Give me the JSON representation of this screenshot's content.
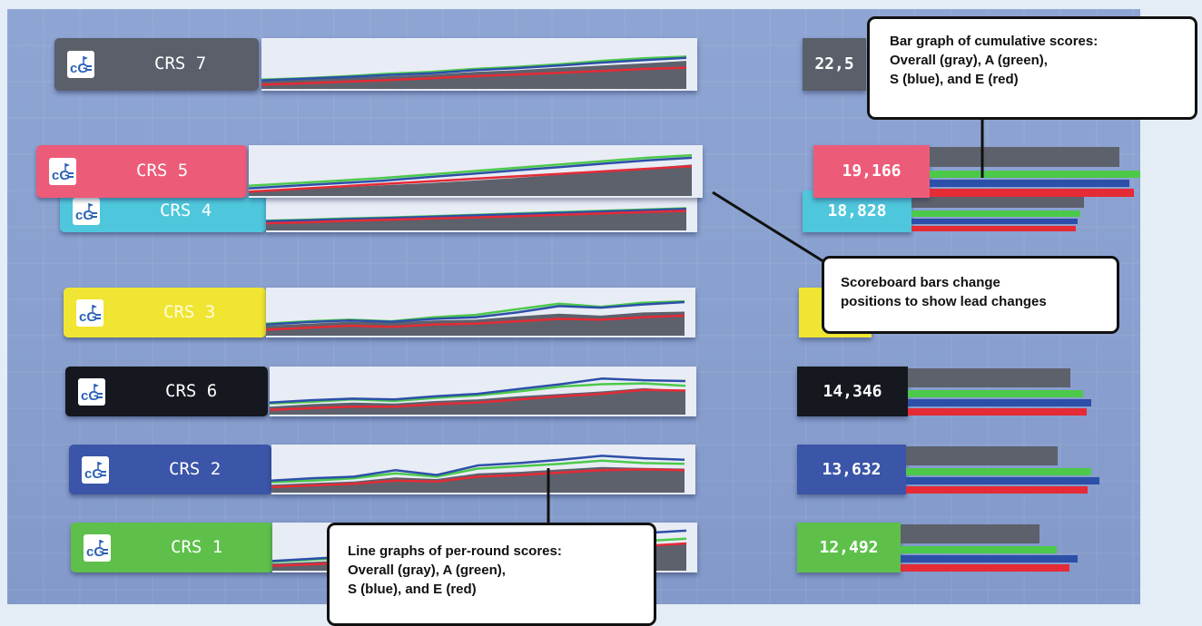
{
  "scoreboard": {
    "rows": [
      {
        "id": "crs7",
        "label": "CRS 7",
        "score": "22,5",
        "color": "#5a5f6a",
        "lines": {
          "gray": [
            0.18,
            0.22,
            0.26,
            0.3,
            0.34,
            0.4,
            0.44,
            0.5,
            0.55,
            0.6,
            0.66
          ],
          "green": [
            0.22,
            0.25,
            0.3,
            0.36,
            0.4,
            0.47,
            0.52,
            0.58,
            0.66,
            0.72,
            0.76
          ],
          "blue": [
            0.2,
            0.24,
            0.28,
            0.33,
            0.37,
            0.44,
            0.49,
            0.55,
            0.62,
            0.68,
            0.73
          ],
          "red": [
            0.1,
            0.13,
            0.17,
            0.21,
            0.25,
            0.3,
            0.34,
            0.38,
            0.42,
            0.47,
            0.5
          ]
        }
      },
      {
        "id": "crs4",
        "label": "CRS 4",
        "score": "18,828",
        "color": "#4ec6dc",
        "lines": {
          "gray": [
            0.25,
            0.28,
            0.32,
            0.34,
            0.38,
            0.42,
            0.45,
            0.5,
            0.54,
            0.58,
            0.62
          ],
          "green": [
            0.3,
            0.33,
            0.37,
            0.4,
            0.44,
            0.48,
            0.52,
            0.56,
            0.6,
            0.64,
            0.68
          ],
          "blue": [
            0.28,
            0.31,
            0.35,
            0.38,
            0.42,
            0.46,
            0.5,
            0.54,
            0.58,
            0.62,
            0.66
          ],
          "red": [
            0.22,
            0.25,
            0.3,
            0.33,
            0.37,
            0.4,
            0.44,
            0.48,
            0.52,
            0.56,
            0.6
          ]
        },
        "bars": {
          "gray": 0.82,
          "green": 0.8,
          "blue": 0.79,
          "red": 0.78
        }
      },
      {
        "id": "crs5",
        "label": "CRS 5",
        "score": "19,166",
        "color": "#ec5c79",
        "lines": {
          "gray": [
            0.12,
            0.16,
            0.2,
            0.25,
            0.3,
            0.36,
            0.42,
            0.5,
            0.58,
            0.66,
            0.74
          ],
          "green": [
            0.24,
            0.3,
            0.36,
            0.42,
            0.5,
            0.58,
            0.66,
            0.74,
            0.82,
            0.9,
            0.96
          ],
          "blue": [
            0.18,
            0.24,
            0.3,
            0.36,
            0.44,
            0.52,
            0.6,
            0.68,
            0.76,
            0.84,
            0.9
          ],
          "red": [
            0.1,
            0.16,
            0.22,
            0.28,
            0.34,
            0.4,
            0.46,
            0.52,
            0.58,
            0.64,
            0.7
          ]
        },
        "bars": {
          "gray": 0.9,
          "green": 1.0,
          "blue": 0.95,
          "red": 0.97
        }
      },
      {
        "id": "crs3",
        "label": "CRS 3",
        "score": "",
        "color": "#f0e532",
        "lines": {
          "gray": [
            0.25,
            0.3,
            0.35,
            0.33,
            0.38,
            0.4,
            0.48,
            0.55,
            0.5,
            0.58,
            0.6
          ],
          "green": [
            0.3,
            0.36,
            0.4,
            0.36,
            0.46,
            0.52,
            0.66,
            0.8,
            0.72,
            0.82,
            0.86
          ],
          "blue": [
            0.28,
            0.34,
            0.38,
            0.35,
            0.42,
            0.46,
            0.58,
            0.74,
            0.7,
            0.78,
            0.84
          ],
          "red": [
            0.15,
            0.2,
            0.25,
            0.22,
            0.28,
            0.3,
            0.36,
            0.42,
            0.4,
            0.46,
            0.5
          ]
        }
      },
      {
        "id": "crs6",
        "label": "CRS 6",
        "score": "14,346",
        "color": "#16181f",
        "lines": {
          "gray": [
            0.2,
            0.26,
            0.3,
            0.28,
            0.34,
            0.38,
            0.46,
            0.52,
            0.58,
            0.66,
            0.6
          ],
          "green": [
            0.28,
            0.32,
            0.38,
            0.34,
            0.42,
            0.48,
            0.58,
            0.7,
            0.76,
            0.78,
            0.72
          ],
          "blue": [
            0.3,
            0.36,
            0.4,
            0.38,
            0.46,
            0.52,
            0.64,
            0.76,
            0.9,
            0.86,
            0.84
          ],
          "red": [
            0.12,
            0.16,
            0.2,
            0.2,
            0.26,
            0.3,
            0.38,
            0.46,
            0.52,
            0.62,
            0.6
          ]
        },
        "bars": {
          "gray": 0.77,
          "green": 0.83,
          "blue": 0.87,
          "red": 0.85
        }
      },
      {
        "id": "crs2",
        "label": "CRS 2",
        "score": "13,632",
        "color": "#3b55a8",
        "lines": {
          "gray": [
            0.2,
            0.24,
            0.28,
            0.38,
            0.34,
            0.48,
            0.52,
            0.58,
            0.64,
            0.62,
            0.6
          ],
          "green": [
            0.26,
            0.3,
            0.36,
            0.48,
            0.4,
            0.6,
            0.66,
            0.72,
            0.8,
            0.74,
            0.72
          ],
          "blue": [
            0.3,
            0.36,
            0.4,
            0.56,
            0.44,
            0.68,
            0.74,
            0.82,
            0.92,
            0.86,
            0.82
          ],
          "red": [
            0.14,
            0.18,
            0.22,
            0.3,
            0.28,
            0.4,
            0.44,
            0.5,
            0.56,
            0.58,
            0.56
          ]
        },
        "bars": {
          "gray": 0.72,
          "green": 0.88,
          "blue": 0.92,
          "red": 0.86
        }
      },
      {
        "id": "crs1",
        "label": "CRS 1",
        "score": "12,492",
        "color": "#5ec04a",
        "lines": {
          "gray": [
            0.18,
            0.22,
            0.26,
            0.3,
            0.34,
            0.4,
            0.46,
            0.52,
            0.58,
            0.64,
            0.7
          ],
          "green": [
            0.22,
            0.28,
            0.32,
            0.38,
            0.44,
            0.5,
            0.56,
            0.62,
            0.68,
            0.74,
            0.8
          ],
          "blue": [
            0.24,
            0.3,
            0.36,
            0.42,
            0.5,
            0.58,
            0.66,
            0.74,
            0.84,
            0.94,
            1.0
          ],
          "red": [
            0.12,
            0.16,
            0.2,
            0.26,
            0.32,
            0.38,
            0.44,
            0.5,
            0.56,
            0.62,
            0.68
          ]
        },
        "bars": {
          "gray": 0.66,
          "green": 0.74,
          "blue": 0.84,
          "red": 0.8
        }
      }
    ]
  },
  "colors": {
    "gray": "#5d616c",
    "green": "#4cc94a",
    "blue": "#2c4fa8",
    "red": "#e42b36",
    "panel": "#e8ecf5",
    "background": "#8ea5d3"
  },
  "icons": {
    "logo": "golf-flag-cgc-logo"
  },
  "callouts": {
    "bar_graph": {
      "lines": [
        "Bar graph of cumulative scores:",
        "Overall (gray), A (green),",
        "S (blue), and E (red)"
      ]
    },
    "scoreboard": {
      "lines": [
        "Scoreboard bars change",
        "positions to show lead changes"
      ]
    },
    "line_graph": {
      "lines": [
        "Line graphs of per-round scores:",
        "Overall (gray), A (green),",
        "S (blue), and E (red)"
      ]
    }
  }
}
